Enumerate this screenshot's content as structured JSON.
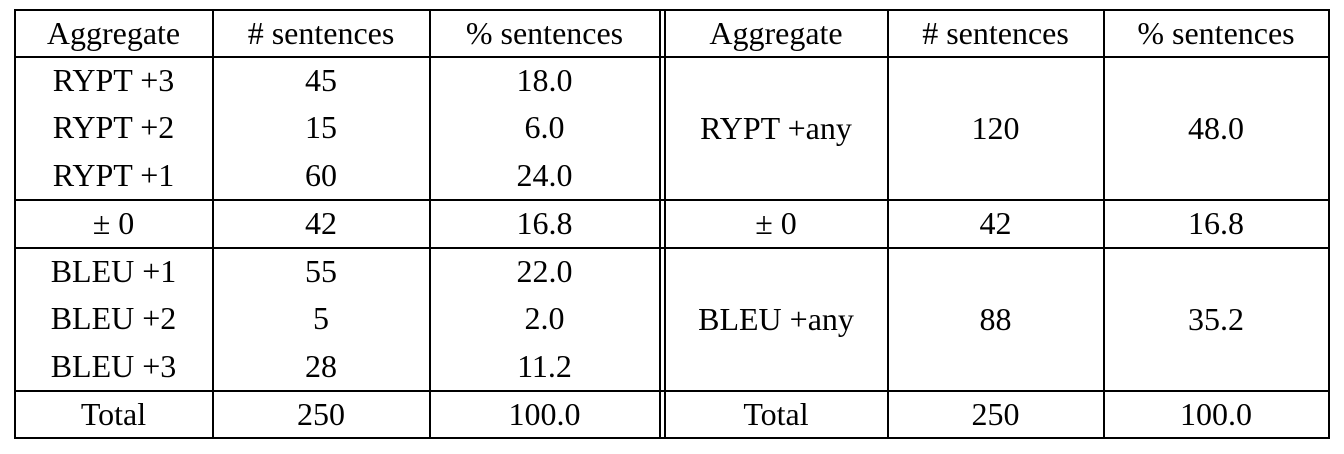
{
  "headers": {
    "left": [
      "Aggregate",
      "# sentences",
      "% sentences"
    ],
    "right": [
      "Aggregate",
      "# sentences",
      "% sentences"
    ]
  },
  "left_rows": [
    [
      "RYPT +3",
      "45",
      "18.0"
    ],
    [
      "RYPT +2",
      "15",
      "6.0"
    ],
    [
      "RYPT +1",
      "60",
      "24.0"
    ],
    [
      "± 0",
      "42",
      "16.8"
    ],
    [
      "BLEU +1",
      "55",
      "22.0"
    ],
    [
      "BLEU +2",
      "5",
      "2.0"
    ],
    [
      "BLEU +3",
      "28",
      "11.2"
    ],
    [
      "Total",
      "250",
      "100.0"
    ]
  ],
  "right_rows": [
    [
      "RYPT +any",
      "120",
      "48.0"
    ],
    [
      "± 0",
      "42",
      "16.8"
    ],
    [
      "BLEU +any",
      "88",
      "35.2"
    ],
    [
      "Total",
      "250",
      "100.0"
    ]
  ]
}
